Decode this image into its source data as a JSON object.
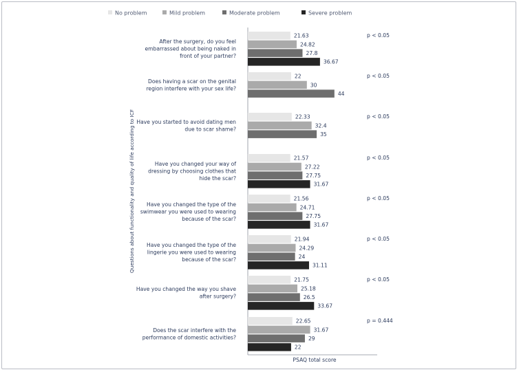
{
  "chart_data": {
    "type": "bar",
    "orientation": "horizontal",
    "xlabel": "PSAQ total score",
    "ylabel": "Questions about functionality and quality of life according to ICF",
    "legend": {
      "placement": "top",
      "entries": [
        "No problem",
        "Mild problem",
        "Moderate problem",
        "Severe problem"
      ]
    },
    "series_colors": [
      "#e6e6e6",
      "#aaaaaa",
      "#6e6e6e",
      "#252525"
    ],
    "grid": false,
    "xlim": [
      0,
      88
    ],
    "categories": [
      {
        "label": [
          "After the surgery, do you feel",
          "embarrassed about being naked in",
          "front of your partner?"
        ],
        "values": [
          21.63,
          24.82,
          27.8,
          36.67
        ],
        "value_labels": [
          "21.63",
          "24.82",
          "27.8",
          "36.67"
        ],
        "series": [
          "No problem",
          "Mild problem",
          "Moderate problem",
          "Severe problem"
        ],
        "p": "p < 0.05"
      },
      {
        "label": [
          "Does having a scar on the genital",
          "region interfere with your sex life?"
        ],
        "values": [
          22,
          30,
          44
        ],
        "value_labels": [
          "22",
          "30",
          "44"
        ],
        "series": [
          "No problem",
          "Mild problem",
          "Moderate problem"
        ],
        "p": "p < 0.05"
      },
      {
        "label": [
          "Have you started to avoid dating men",
          "due to scar shame?"
        ],
        "values": [
          22.33,
          32.4,
          35
        ],
        "value_labels": [
          "22.33",
          "32.4",
          "35"
        ],
        "series": [
          "No problem",
          "Mild problem",
          "Moderate problem"
        ],
        "p": "p < 0.05"
      },
      {
        "label": [
          "Have you changed your way of",
          "dressing by choosing clothes that",
          "hide the scar?"
        ],
        "values": [
          21.57,
          27.22,
          27.75,
          31.67
        ],
        "value_labels": [
          "21.57",
          "27.22",
          "27.75",
          "31.67"
        ],
        "series": [
          "No problem",
          "Mild problem",
          "Moderate problem",
          "Severe problem"
        ],
        "p": "p < 0.05"
      },
      {
        "label": [
          "Have you changed the type of the",
          "swimwear you were used to wearing",
          "because of the scar?"
        ],
        "values": [
          21.56,
          24.71,
          27.75,
          31.67
        ],
        "value_labels": [
          "21.56",
          "24.71",
          "27.75",
          "31.67"
        ],
        "series": [
          "No problem",
          "Mild problem",
          "Moderate problem",
          "Severe problem"
        ],
        "p": "p < 0.05"
      },
      {
        "label": [
          "Have you changed the type of the",
          "lingerie you were used to wearing",
          "because of the scar?"
        ],
        "values": [
          21.94,
          24.29,
          24,
          31.11
        ],
        "value_labels": [
          "21.94",
          "24.29",
          "24",
          "31.11"
        ],
        "series": [
          "No problem",
          "Mild problem",
          "Moderate problem",
          "Severe problem"
        ],
        "p": "p < 0.05"
      },
      {
        "label": [
          "Have you changed the way you shave",
          "after surgery?"
        ],
        "values": [
          21.75,
          25.18,
          26.5,
          33.67
        ],
        "value_labels": [
          "21.75",
          "25.18",
          "26.5",
          "33.67"
        ],
        "series": [
          "No problem",
          "Mild problem",
          "Moderate problem",
          "Severe problem"
        ],
        "p": "p < 0.05"
      },
      {
        "label": [
          "Does the scar interfere with the",
          "performance of domestic activities?"
        ],
        "values": [
          22.65,
          31.67,
          29,
          22
        ],
        "value_labels": [
          "22.65",
          "31.67",
          "29",
          "22"
        ],
        "series": [
          "No problem",
          "Mild problem",
          "Moderate problem",
          "Severe problem"
        ],
        "p": "p = 0.444"
      }
    ]
  }
}
